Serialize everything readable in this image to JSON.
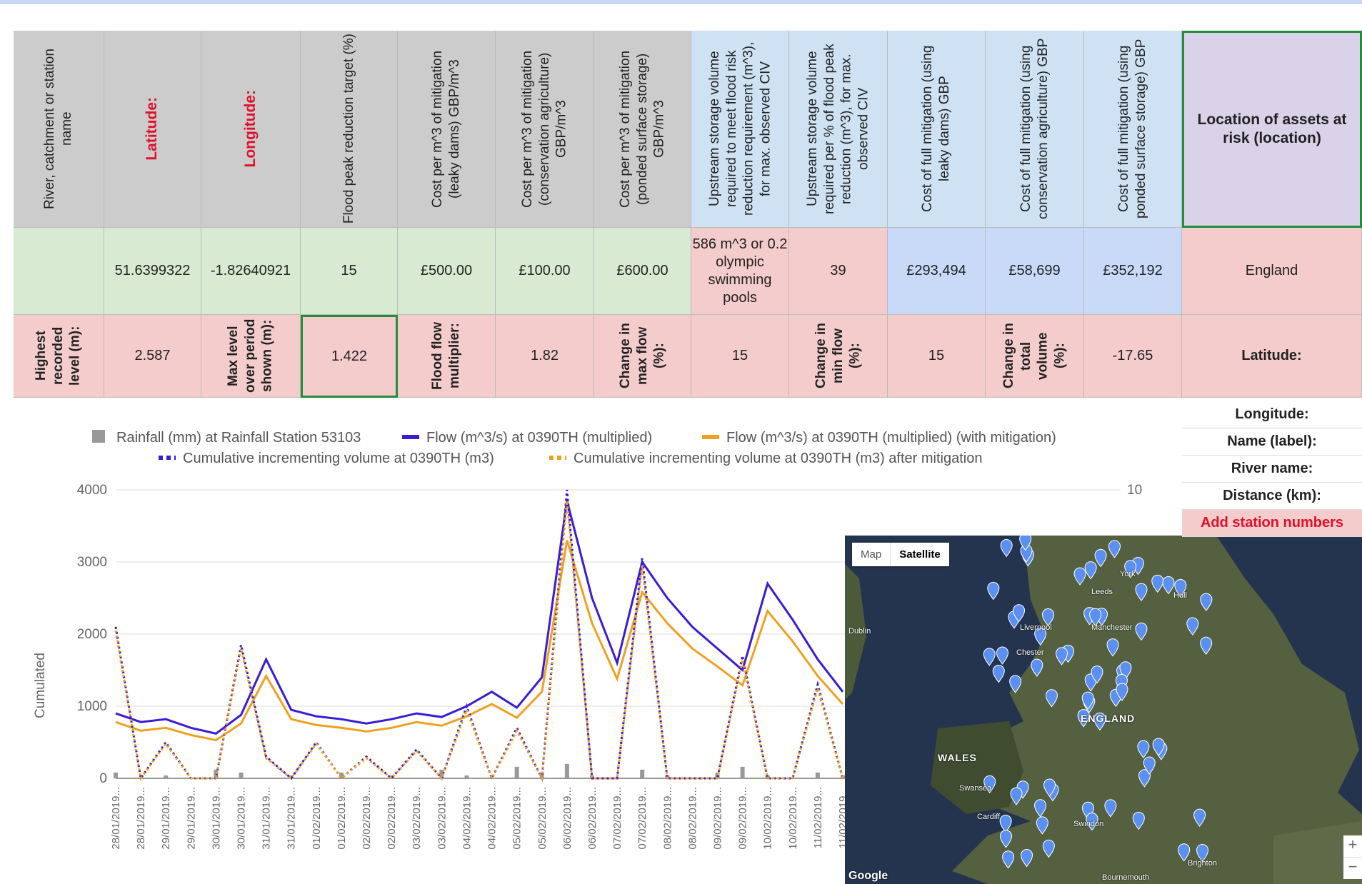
{
  "table": {
    "headers": [
      "River, catchment or station name",
      "Latitude:",
      "Longitude:",
      "Flood peak reduction target (%)",
      "Cost per m^3 of mitigation (leaky dams) GBP/m^3",
      "Cost per m^3 of mitigation (conservation agriculture) GBP/m^3",
      "Cost per m^3 of mitigation (ponded surface storage) GBP/m^3",
      "Upstream storage volume required to meet flood risk reduction requirement (m^3), for max. observed CIV",
      "Upstream storage volume required per % of flood peak reduction (m^3), for max. observed CIV",
      "Cost of full mitigation (using leaky dams) GBP",
      "Cost of full mitigation (using conservation agriculture) GBP",
      "Cost of full mitigation (using ponded surface storage) GBP",
      "Location of assets at risk (location)"
    ],
    "rows": [
      [
        null,
        "51.6399322",
        "-1.82640921",
        "15",
        "£500.00",
        "£100.00",
        "£600.00",
        "586 m^3 or 0.2 olympic swimming pools",
        "39",
        "£293,494",
        "£58,699",
        "£352,192",
        "England"
      ],
      [
        "Highest recorded level (m):",
        "2.587",
        "Max level over period shown (m):",
        "1.422",
        "Flood flow multiplier:",
        "1.82",
        "Change in max flow (%):",
        "15",
        "Change in min flow (%):",
        "15",
        "Change in total volume (%):",
        "-17.65",
        "Latitude:"
      ]
    ],
    "side_labels": [
      "Longitude:",
      "Name (label):",
      "River name:",
      "Distance (km):",
      "Add station numbers"
    ]
  },
  "chart_data": {
    "type": "line",
    "y_label": "Cumulated",
    "categories": [
      "28/01/2019...",
      "28/01/2019...",
      "29/01/2019...",
      "29/01/2019...",
      "30/01/2019...",
      "30/01/2019...",
      "31/01/2019...",
      "31/01/2019...",
      "01/02/2019...",
      "01/02/2019...",
      "02/02/2019...",
      "02/02/2019...",
      "03/02/2019...",
      "03/02/2019...",
      "04/02/2019...",
      "04/02/2019...",
      "05/02/2019...",
      "05/02/2019...",
      "06/02/2019...",
      "06/02/2019...",
      "07/02/2019...",
      "07/02/2019...",
      "08/02/2019...",
      "08/02/2019...",
      "09/02/2019...",
      "09/02/2019...",
      "10/02/2019...",
      "10/02/2019...",
      "11/02/2019...",
      "11/02/2019..."
    ],
    "ylim": [
      0,
      4000
    ],
    "yticks": [
      0,
      1000,
      2000,
      3000,
      4000
    ],
    "y2lim": [
      0,
      10
    ],
    "y2ticks": [
      10
    ],
    "grid": true,
    "series": [
      {
        "name": "Rainfall (mm) at Rainfall Station 53103",
        "color": "#999999",
        "style": "bar",
        "axis": "y2",
        "values": [
          0.2,
          0,
          0.1,
          0,
          0.3,
          0.2,
          0,
          0.1,
          0,
          0.2,
          0,
          0.1,
          0,
          0.3,
          0.1,
          0,
          0.4,
          0.2,
          0.5,
          0.1,
          0,
          0.3,
          0.1,
          0,
          0.2,
          0.4,
          0.1,
          0,
          0.2,
          0.1
        ]
      },
      {
        "name": "Flow (m^3/s) at  0390TH (multiplied)",
        "color": "#3a1bd6",
        "style": "solid",
        "values": [
          900,
          780,
          820,
          700,
          620,
          880,
          1650,
          950,
          860,
          820,
          760,
          820,
          900,
          850,
          1000,
          1200,
          980,
          1400,
          3850,
          2500,
          1600,
          3000,
          2500,
          2100,
          1800,
          1500,
          2700,
          2200,
          1650,
          1200
        ]
      },
      {
        "name": "Flow (m^3/s) at  0390TH (multiplied) (with mitigation)",
        "color": "#f0a020",
        "style": "solid",
        "values": [
          780,
          660,
          700,
          600,
          530,
          760,
          1420,
          820,
          740,
          700,
          650,
          700,
          780,
          730,
          860,
          1030,
          840,
          1200,
          3300,
          2150,
          1380,
          2580,
          2150,
          1800,
          1550,
          1290,
          2320,
          1900,
          1420,
          1030
        ]
      },
      {
        "name": "Cumulative incrementing volume at  0390TH (m3)",
        "color": "#3a1bd6",
        "style": "dotted",
        "values": [
          2100,
          0,
          500,
          0,
          0,
          1850,
          300,
          0,
          500,
          0,
          300,
          0,
          400,
          0,
          1000,
          0,
          700,
          0,
          4000,
          0,
          0,
          3050,
          0,
          0,
          0,
          1700,
          0,
          0,
          1300,
          0
        ]
      },
      {
        "name": "Cumulative incrementing volume at  0390TH (m3) after mitigation",
        "color": "#f0a020",
        "style": "dotted",
        "values": [
          2050,
          0,
          480,
          0,
          0,
          1800,
          280,
          0,
          480,
          0,
          280,
          0,
          380,
          0,
          950,
          0,
          660,
          0,
          3850,
          0,
          0,
          2950,
          0,
          0,
          0,
          1650,
          0,
          0,
          1250,
          0
        ]
      }
    ]
  },
  "map": {
    "buttons": [
      "Map",
      "Satellite"
    ],
    "labels": [
      "ENGLAND",
      "WALES",
      "Leeds",
      "Manchester",
      "Liverpool",
      "Hull",
      "York",
      "Chester",
      "Swansea",
      "Cardiff",
      "Swindon",
      "Brighton",
      "Bournemouth",
      "Dublin",
      "Google"
    ]
  }
}
